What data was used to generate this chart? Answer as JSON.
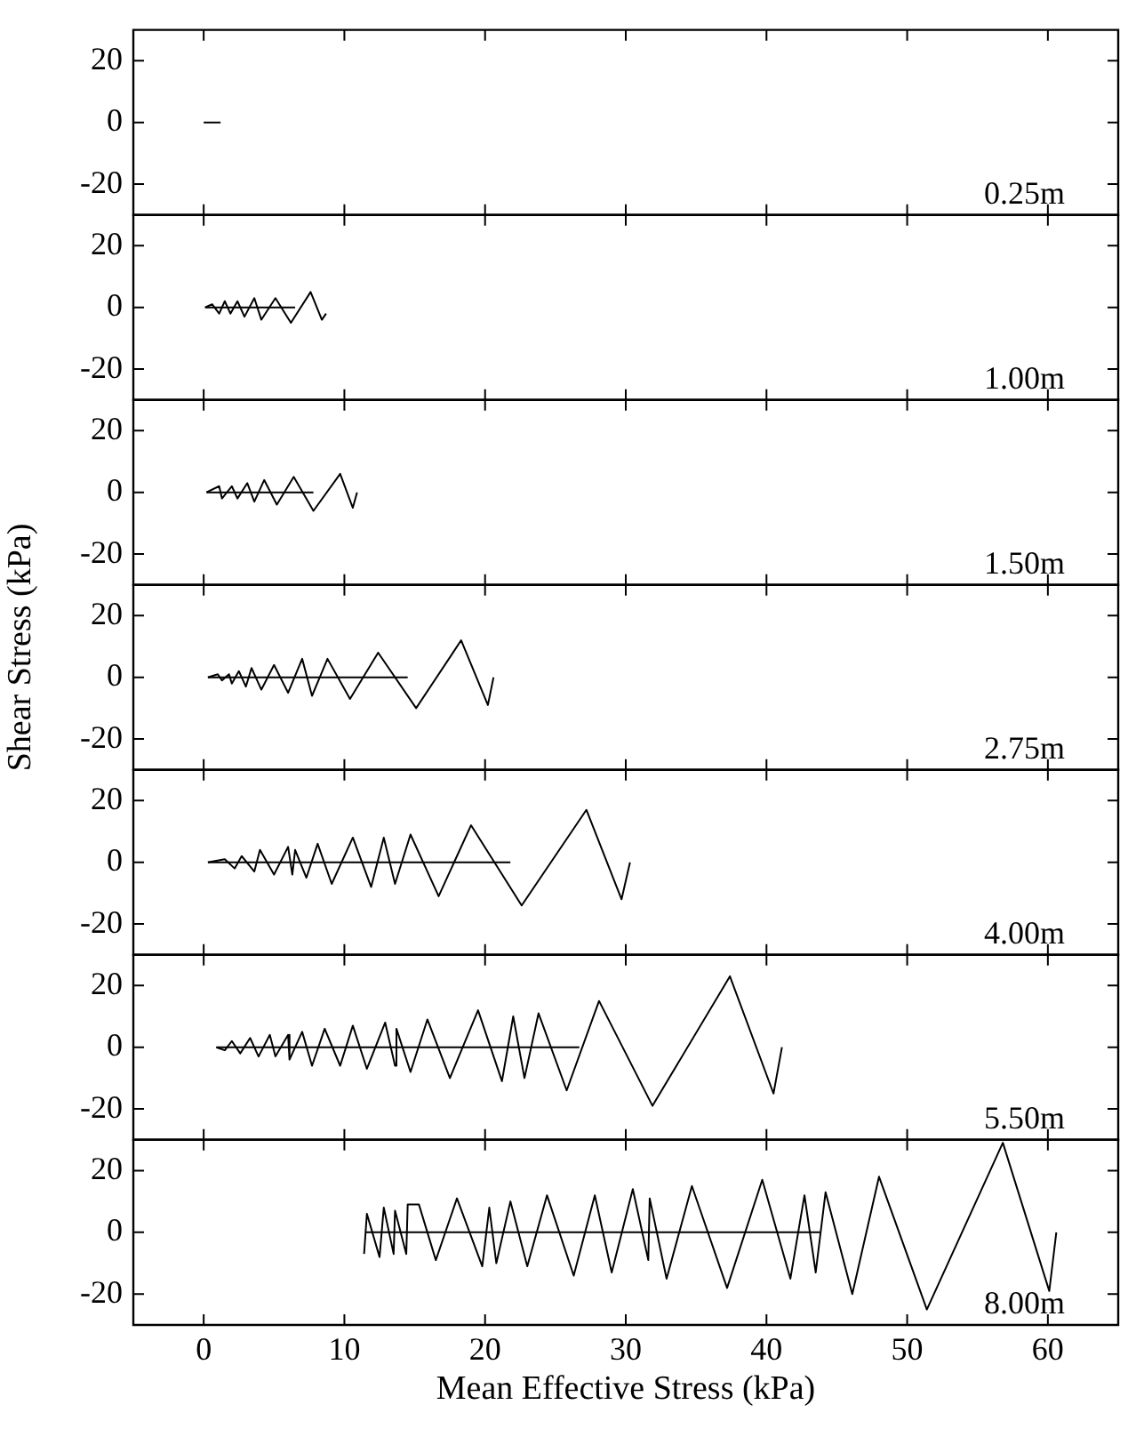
{
  "chart_data": [
    {
      "type": "line",
      "xlim": [
        -5,
        65
      ],
      "xticks": [
        0,
        10,
        20,
        30,
        40,
        50,
        60
      ],
      "ylim": [
        -30,
        30
      ],
      "yticks": [
        -20,
        0,
        20
      ],
      "tick_labels": "y",
      "annotations": [
        "0.25m"
      ],
      "series": [
        {
          "color": "#000000",
          "x": [
            0,
            1.2
          ],
          "values": [
            0,
            0
          ]
        }
      ]
    },
    {
      "type": "line",
      "xlim": [
        -5,
        65
      ],
      "xticks": [
        0,
        10,
        20,
        30,
        40,
        50,
        60
      ],
      "ylim": [
        -30,
        30
      ],
      "yticks": [
        -20,
        0,
        20
      ],
      "tick_labels": "y",
      "annotations": [
        "1.00m"
      ],
      "series": [
        {
          "color": "#000000",
          "x": [
            0.1,
            6.5
          ],
          "values": [
            0,
            0
          ]
        },
        {
          "color": "#000000",
          "x": [
            0.1,
            0.6,
            1.1,
            1.5,
            1.9,
            2.4,
            2.9,
            3.6,
            4.1,
            5.1,
            6.2,
            7.6,
            8.4,
            8.7
          ],
          "values": [
            0,
            1,
            -2,
            2,
            -2,
            2,
            -3,
            3,
            -4,
            3,
            -5,
            5,
            -4,
            -2
          ]
        }
      ]
    },
    {
      "type": "line",
      "xlim": [
        -5,
        65
      ],
      "xticks": [
        0,
        10,
        20,
        30,
        40,
        50,
        60
      ],
      "ylim": [
        -30,
        30
      ],
      "yticks": [
        -20,
        0,
        20
      ],
      "tick_labels": "y",
      "annotations": [
        "1.50m"
      ],
      "series": [
        {
          "color": "#000000",
          "x": [
            0.2,
            7.8
          ],
          "values": [
            0,
            0
          ]
        },
        {
          "color": "#000000",
          "x": [
            0.2,
            1.1,
            1.3,
            2,
            2.4,
            3.1,
            3.6,
            4.3,
            5.2,
            6.4,
            7.8,
            9.7,
            10.6,
            10.9
          ],
          "values": [
            0,
            2,
            -2,
            2,
            -2,
            3,
            -3,
            4,
            -4,
            5,
            -6,
            6,
            -5,
            0
          ]
        }
      ]
    },
    {
      "type": "line",
      "ylabel": "Shear Stress (kPa)",
      "xlim": [
        -5,
        65
      ],
      "xticks": [
        0,
        10,
        20,
        30,
        40,
        50,
        60
      ],
      "ylim": [
        -30,
        30
      ],
      "yticks": [
        -20,
        0,
        20
      ],
      "tick_labels": "y",
      "annotations": [
        "2.75m"
      ],
      "series": [
        {
          "color": "#000000",
          "x": [
            0.3,
            14.5
          ],
          "values": [
            0,
            0
          ]
        },
        {
          "color": "#000000",
          "x": [
            0.3,
            1,
            1.3,
            1.8,
            2,
            2.5,
            3,
            3.4,
            4.1,
            5,
            6,
            7,
            7.7,
            8.8,
            10.4,
            12.4,
            15.1,
            18.3,
            20.2,
            20.6
          ],
          "values": [
            0,
            1,
            -1,
            1,
            -2,
            2,
            -3,
            3,
            -4,
            4,
            -5,
            6,
            -6,
            6,
            -7,
            8,
            -10,
            12,
            -9,
            0
          ]
        }
      ]
    },
    {
      "type": "line",
      "xlim": [
        -5,
        65
      ],
      "xticks": [
        0,
        10,
        20,
        30,
        40,
        50,
        60
      ],
      "ylim": [
        -30,
        30
      ],
      "yticks": [
        -20,
        0,
        20
      ],
      "tick_labels": "y",
      "annotations": [
        "4.00m"
      ],
      "series": [
        {
          "color": "#000000",
          "x": [
            0.3,
            21.8
          ],
          "values": [
            0,
            0
          ]
        },
        {
          "color": "#000000",
          "x": [
            0.3,
            1.5,
            2.2,
            2.7,
            3.6,
            4,
            5,
            6,
            6.3,
            6.5,
            7.3,
            8.1,
            9.1,
            10.6,
            11.9,
            12.8,
            13.6,
            14.7,
            16.7,
            19,
            22.6,
            27.2,
            29.7,
            30.3
          ],
          "values": [
            0,
            1,
            -2,
            2,
            -3,
            4,
            -4,
            5,
            -4,
            4,
            -5,
            6,
            -7,
            8,
            -8,
            8,
            -7,
            9,
            -11,
            12,
            -14,
            17,
            -12,
            0
          ]
        }
      ]
    },
    {
      "type": "line",
      "xlim": [
        -5,
        65
      ],
      "xticks": [
        0,
        10,
        20,
        30,
        40,
        50,
        60
      ],
      "ylim": [
        -30,
        30
      ],
      "yticks": [
        -20,
        0,
        20
      ],
      "tick_labels": "y",
      "annotations": [
        "5.50m"
      ],
      "series": [
        {
          "color": "#000000",
          "x": [
            0.9,
            26.7
          ],
          "values": [
            0,
            0
          ]
        },
        {
          "color": "#000000",
          "x": [
            0.9,
            1.5,
            2.0,
            2.6,
            3.3,
            3.9,
            4.7,
            5.1,
            6.0,
            6.1,
            7.0,
            7.7,
            8.6,
            9.7,
            10.6,
            11.6,
            12.9,
            13.6,
            13.7,
            14.7,
            15.9,
            17.5,
            19.5,
            21.2,
            22,
            22.8,
            23.8,
            25.8,
            28.1,
            31.9,
            37.4,
            40.5,
            41.1
          ],
          "values": [
            0,
            -1,
            2,
            -2,
            3,
            -3,
            4,
            -3,
            4,
            -4,
            5,
            -6,
            6,
            -6,
            7,
            -7,
            8,
            -6,
            6,
            -8,
            9,
            -10,
            12,
            -11,
            10,
            -10,
            11,
            -14,
            15,
            -19,
            23,
            -15,
            0
          ]
        }
      ]
    },
    {
      "type": "line",
      "xlabel": "Mean Effective Stress (kPa)",
      "xlim": [
        -5,
        65
      ],
      "xticks": [
        0,
        10,
        20,
        30,
        40,
        50,
        60
      ],
      "ylim": [
        -30,
        30
      ],
      "yticks": [
        -20,
        0,
        20
      ],
      "annotations": [
        "8.00m"
      ],
      "series": [
        {
          "color": "#000000",
          "x": [
            11.5,
            43.8
          ],
          "values": [
            0,
            0
          ]
        },
        {
          "color": "#000000",
          "x": [
            11.4,
            11.6,
            12.5,
            12.8,
            13.5,
            13.6,
            14.4,
            14.5,
            15.3,
            16.5,
            18,
            19.8,
            20.3,
            20.8,
            21.8,
            23,
            24.4,
            26.3,
            27.8,
            29,
            30.5,
            31.6,
            31.7,
            32.9,
            34.7,
            37.2,
            39.7,
            41.7,
            42.7,
            43.5,
            44.2,
            46.1,
            48,
            51.4,
            56.8,
            60.1,
            60.6
          ],
          "values": [
            -7,
            6,
            -8,
            8,
            -7,
            7,
            -7,
            9,
            9,
            -9,
            11,
            -11,
            8,
            -10,
            10,
            -11,
            12,
            -14,
            12,
            -13,
            14,
            -9,
            11,
            -15,
            15,
            -18,
            17,
            -15,
            12,
            -13,
            13,
            -20,
            18,
            -25,
            29,
            -19,
            0
          ]
        }
      ]
    }
  ]
}
